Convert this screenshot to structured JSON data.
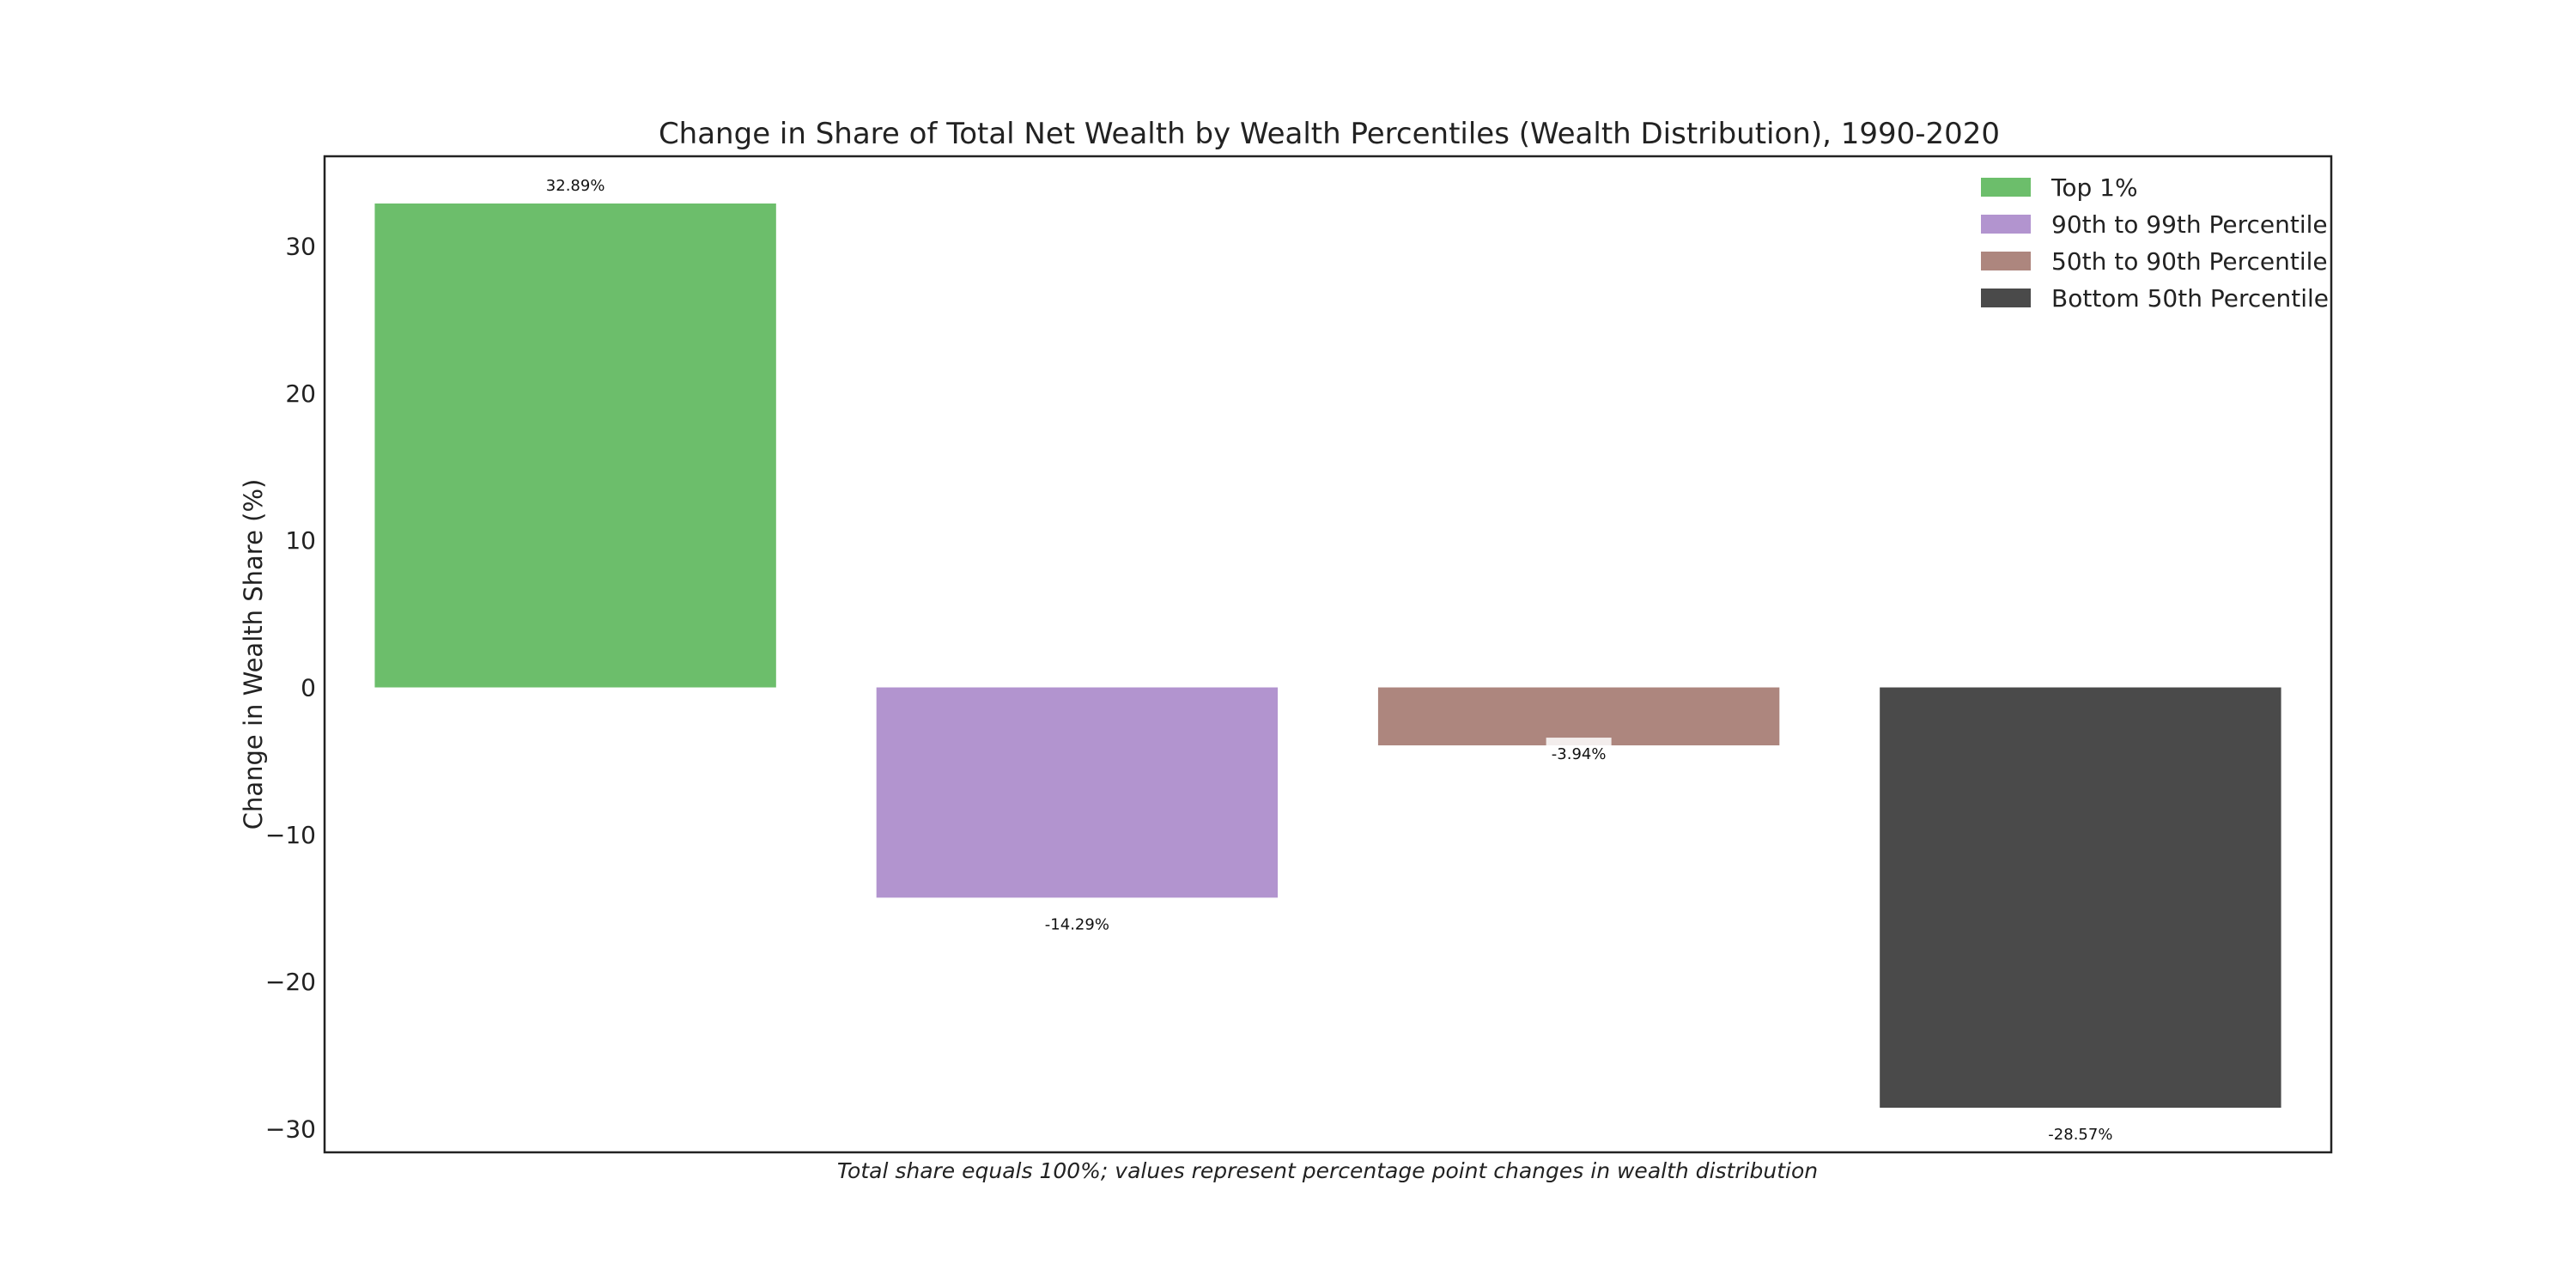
{
  "chart_data": {
    "type": "bar",
    "title": "Change in Share of Total Net Wealth by Wealth Percentiles (Wealth Distribution), 1990-2020",
    "xlabel": "",
    "ylabel": "Change in Wealth Share (%)",
    "caption": "Total share equals 100%; values represent percentage point changes in wealth distribution",
    "ylim": [
      -31.6,
      36.1
    ],
    "yticks": [
      -30,
      -20,
      -10,
      0,
      10,
      20,
      30
    ],
    "grid": false,
    "legend_position": "top-right",
    "categories": [
      "Top 1%",
      "90th to 99th Percentile",
      "50th to 90th Percentile",
      "Bottom 50th Percentile"
    ],
    "values": [
      32.89,
      -14.29,
      -3.94,
      -28.57
    ],
    "value_labels": [
      "32.89%",
      "-14.29%",
      "-3.94%",
      "-28.57%"
    ],
    "colors": [
      "#6cbe6b",
      "#b294cf",
      "#ad867e",
      "#4a4a4a"
    ]
  }
}
